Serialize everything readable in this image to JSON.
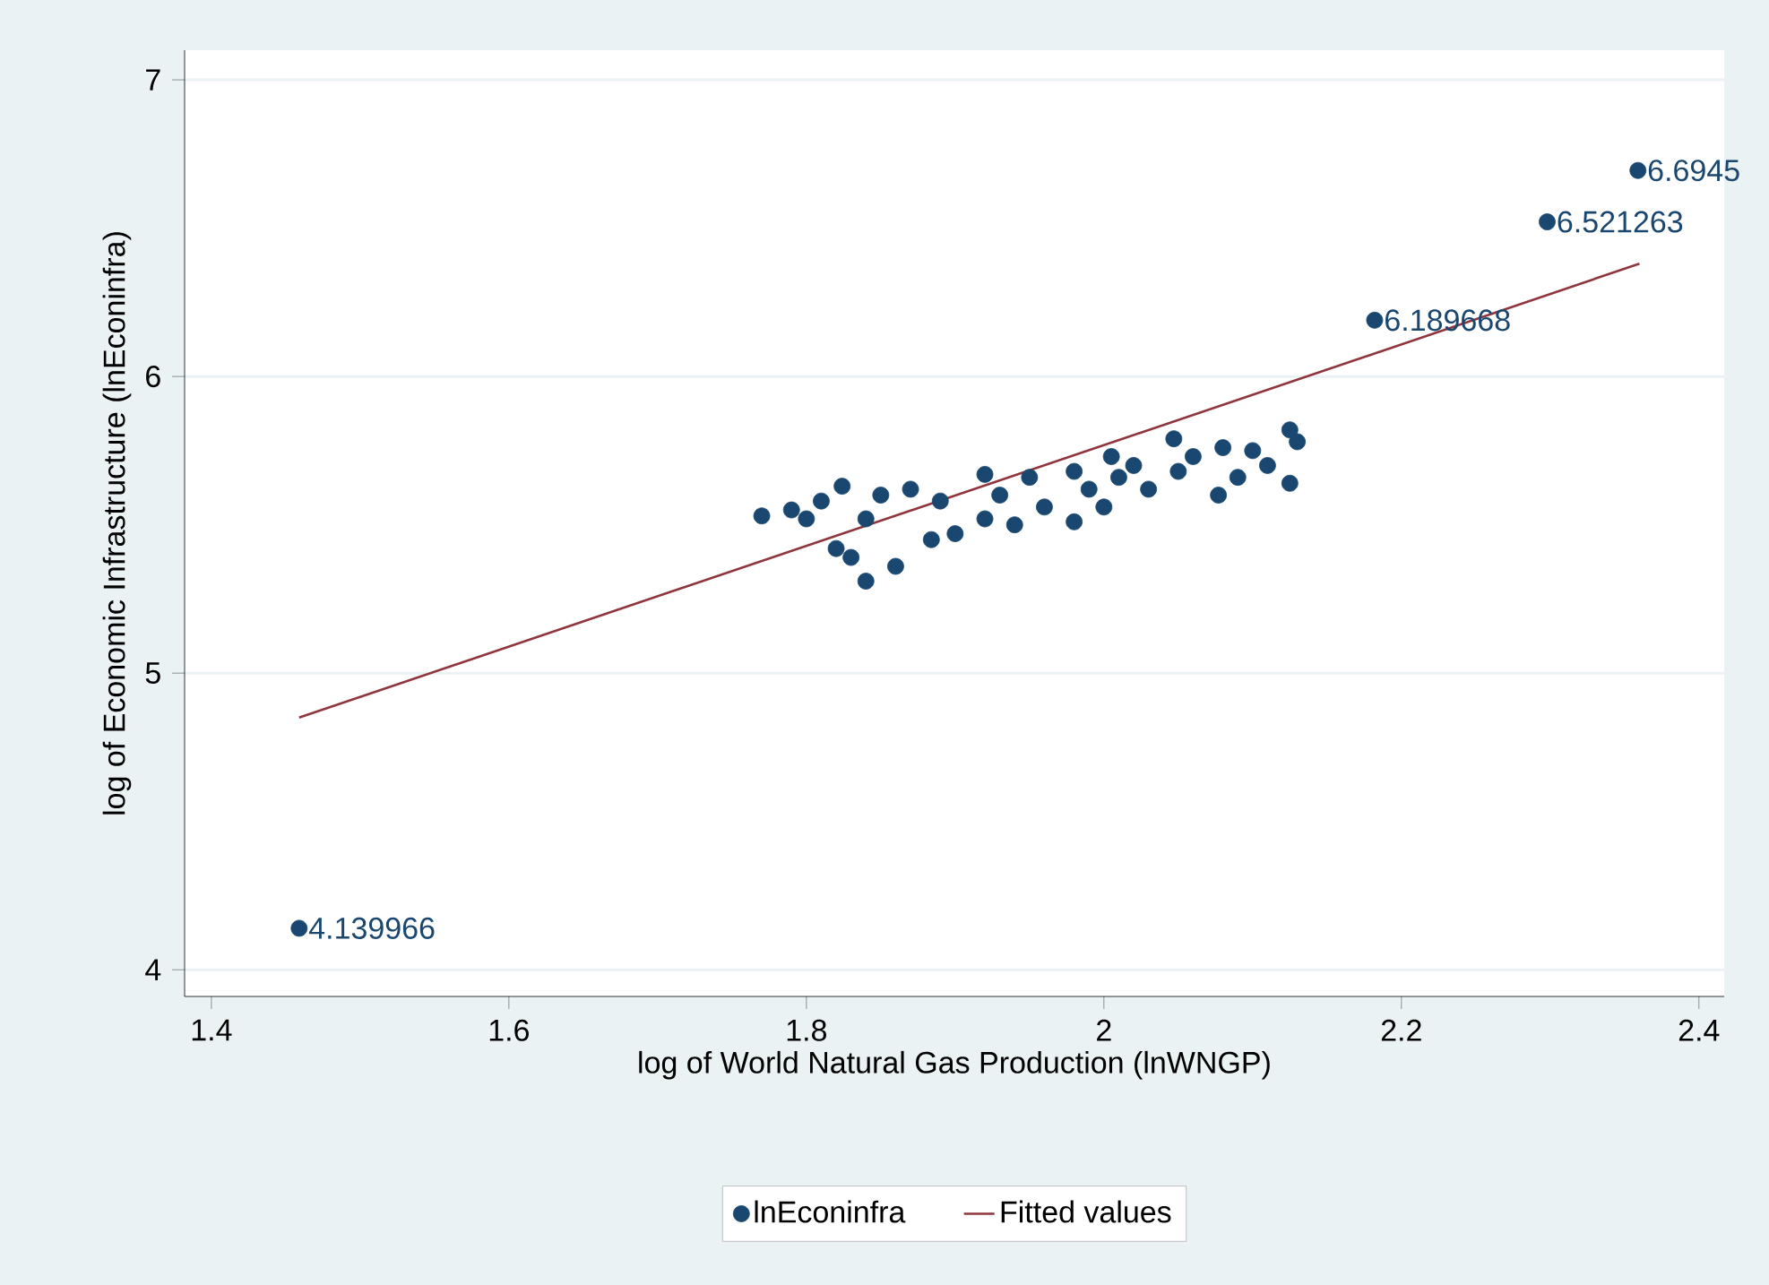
{
  "chart_data": {
    "type": "scatter",
    "xlabel": "log of World Natural Gas Production (lnWNGP)",
    "ylabel": "log of Economic Infrastructure (lnEconinfra)",
    "xlim": [
      1.382,
      2.417
    ],
    "ylim": [
      3.91,
      7.1
    ],
    "xticks": [
      1.4,
      1.6,
      1.8,
      2,
      2.2,
      2.4
    ],
    "yticks": [
      4,
      5,
      6,
      7
    ],
    "grid": "y",
    "legend": "bottom",
    "series": [
      {
        "name": "lnEconinfra",
        "marker": "circle",
        "color": "#1a476f",
        "x": [
          1.459,
          1.77,
          1.79,
          1.8,
          1.81,
          1.824,
          1.82,
          1.83,
          1.84,
          1.84,
          1.85,
          1.86,
          1.87,
          1.884,
          1.89,
          1.9,
          1.92,
          1.92,
          1.93,
          1.94,
          1.95,
          1.96,
          1.98,
          1.98,
          1.99,
          2.005,
          2.0,
          2.01,
          2.02,
          2.03,
          2.047,
          2.05,
          2.06,
          2.077,
          2.08,
          2.09,
          2.1,
          2.11,
          2.125,
          2.125,
          2.13,
          2.182,
          2.298,
          2.359
        ],
        "values": [
          4.139966,
          5.53,
          5.55,
          5.52,
          5.58,
          5.63,
          5.42,
          5.39,
          5.31,
          5.52,
          5.6,
          5.36,
          5.62,
          5.45,
          5.58,
          5.47,
          5.67,
          5.52,
          5.6,
          5.5,
          5.66,
          5.56,
          5.51,
          5.68,
          5.62,
          5.73,
          5.56,
          5.66,
          5.7,
          5.62,
          5.79,
          5.68,
          5.73,
          5.6,
          5.76,
          5.66,
          5.75,
          5.7,
          5.82,
          5.64,
          5.78,
          6.189668,
          6.521263,
          6.6945
        ],
        "value_labels": [
          "4.139966",
          null,
          null,
          null,
          null,
          null,
          null,
          null,
          null,
          null,
          null,
          null,
          null,
          null,
          null,
          null,
          null,
          null,
          null,
          null,
          null,
          null,
          null,
          null,
          null,
          null,
          null,
          null,
          null,
          null,
          null,
          null,
          null,
          null,
          null,
          null,
          null,
          null,
          null,
          null,
          null,
          "6.189668",
          "6.521263",
          "6.6945"
        ]
      },
      {
        "name": "Fitted values",
        "type": "line",
        "color": "#90353b",
        "x": [
          1.459,
          2.36
        ],
        "values": [
          4.85,
          6.38
        ]
      }
    ]
  }
}
